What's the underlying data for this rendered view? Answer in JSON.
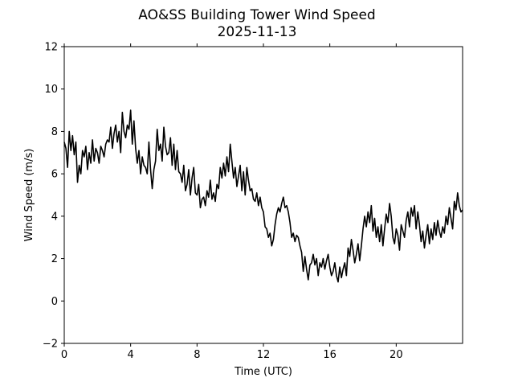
{
  "chart_data": {
    "type": "line",
    "title": "AO&SS Building Tower Wind Speed",
    "subtitle": "2025-11-13",
    "xlabel": "Time (UTC)",
    "ylabel": "Wind Speed (m/s)",
    "xlim": [
      0,
      24
    ],
    "ylim": [
      -2,
      12
    ],
    "xticks": [
      0,
      4,
      8,
      12,
      16,
      20
    ],
    "xtick_labels": [
      "0",
      "4",
      "8",
      "12",
      "16",
      "20"
    ],
    "yticks": [
      -2,
      0,
      2,
      4,
      6,
      8,
      10,
      12
    ],
    "ytick_labels": [
      "−2",
      "0",
      "2",
      "4",
      "6",
      "8",
      "10",
      "12"
    ],
    "grid": false,
    "series": [
      {
        "color": "#000000",
        "x": [
          0.0,
          0.1,
          0.2,
          0.3,
          0.4,
          0.5,
          0.6,
          0.7,
          0.8,
          0.9,
          1.0,
          1.1,
          1.2,
          1.3,
          1.4,
          1.5,
          1.6,
          1.7,
          1.8,
          1.9,
          2.0,
          2.1,
          2.2,
          2.3,
          2.4,
          2.5,
          2.6,
          2.7,
          2.8,
          2.9,
          3.0,
          3.1,
          3.2,
          3.3,
          3.4,
          3.5,
          3.6,
          3.7,
          3.8,
          3.9,
          4.0,
          4.1,
          4.2,
          4.3,
          4.4,
          4.5,
          4.6,
          4.7,
          4.8,
          4.9,
          5.0,
          5.1,
          5.2,
          5.3,
          5.4,
          5.5,
          5.6,
          5.7,
          5.8,
          5.9,
          6.0,
          6.1,
          6.2,
          6.3,
          6.4,
          6.5,
          6.6,
          6.7,
          6.8,
          6.9,
          7.0,
          7.1,
          7.2,
          7.3,
          7.4,
          7.5,
          7.6,
          7.7,
          7.8,
          7.9,
          8.0,
          8.1,
          8.2,
          8.3,
          8.4,
          8.5,
          8.6,
          8.7,
          8.8,
          8.9,
          9.0,
          9.1,
          9.2,
          9.3,
          9.4,
          9.5,
          9.6,
          9.7,
          9.8,
          9.9,
          10.0,
          10.1,
          10.2,
          10.3,
          10.4,
          10.5,
          10.6,
          10.7,
          10.8,
          10.9,
          11.0,
          11.1,
          11.2,
          11.3,
          11.4,
          11.5,
          11.6,
          11.7,
          11.8,
          11.9,
          12.0,
          12.1,
          12.2,
          12.3,
          12.4,
          12.5,
          12.6,
          12.7,
          12.8,
          12.9,
          13.0,
          13.1,
          13.2,
          13.3,
          13.4,
          13.5,
          13.6,
          13.7,
          13.8,
          13.9,
          14.0,
          14.1,
          14.2,
          14.3,
          14.4,
          14.5,
          14.6,
          14.7,
          14.8,
          14.9,
          15.0,
          15.1,
          15.2,
          15.3,
          15.4,
          15.5,
          15.6,
          15.7,
          15.8,
          15.9,
          16.0,
          16.1,
          16.2,
          16.3,
          16.4,
          16.5,
          16.6,
          16.7,
          16.8,
          16.9,
          17.0,
          17.1,
          17.2,
          17.3,
          17.4,
          17.5,
          17.6,
          17.7,
          17.8,
          17.9,
          18.0,
          18.1,
          18.2,
          18.3,
          18.4,
          18.5,
          18.6,
          18.7,
          18.8,
          18.9,
          19.0,
          19.1,
          19.2,
          19.3,
          19.4,
          19.5,
          19.6,
          19.7,
          19.8,
          19.9,
          20.0,
          20.1,
          20.2,
          20.3,
          20.4,
          20.5,
          20.6,
          20.7,
          20.8,
          20.9,
          21.0,
          21.1,
          21.2,
          21.3,
          21.4,
          21.5,
          21.6,
          21.7,
          21.8,
          21.9,
          22.0,
          22.1,
          22.2,
          22.3,
          22.4,
          22.5,
          22.6,
          22.7,
          22.8,
          22.9,
          23.0,
          23.1,
          23.2,
          23.3,
          23.4,
          23.5,
          23.6,
          23.7,
          23.8,
          23.9,
          24.0
        ],
        "values": [
          7.5,
          7.2,
          6.3,
          8.0,
          7.1,
          7.8,
          6.9,
          7.5,
          5.6,
          6.4,
          6.0,
          7.1,
          6.8,
          7.3,
          6.2,
          7.0,
          6.5,
          7.6,
          6.6,
          7.2,
          7.0,
          6.5,
          7.3,
          7.1,
          6.8,
          7.4,
          7.6,
          7.5,
          8.2,
          7.2,
          7.9,
          8.3,
          7.5,
          8.0,
          7.0,
          8.9,
          8.0,
          7.7,
          8.3,
          8.1,
          9.0,
          7.4,
          8.5,
          7.2,
          6.5,
          7.1,
          6.0,
          6.8,
          6.4,
          6.3,
          6.0,
          7.5,
          6.2,
          5.3,
          6.2,
          6.6,
          8.1,
          7.1,
          7.4,
          6.6,
          8.2,
          7.3,
          6.9,
          7.0,
          7.7,
          6.4,
          7.4,
          6.2,
          7.1,
          6.1,
          6.0,
          5.6,
          6.4,
          5.2,
          5.5,
          6.2,
          5.0,
          5.8,
          6.3,
          5.1,
          5.0,
          5.5,
          4.4,
          4.8,
          4.9,
          4.5,
          5.2,
          4.9,
          5.7,
          4.8,
          5.1,
          4.7,
          5.5,
          5.3,
          6.3,
          5.8,
          6.5,
          5.9,
          6.8,
          6.1,
          7.4,
          6.6,
          5.8,
          6.3,
          5.4,
          5.9,
          6.4,
          5.2,
          6.1,
          5.0,
          6.3,
          5.7,
          5.2,
          5.3,
          4.8,
          4.7,
          5.1,
          4.5,
          4.9,
          4.4,
          4.2,
          3.5,
          3.4,
          3.0,
          3.2,
          2.6,
          2.9,
          3.6,
          4.1,
          4.4,
          4.2,
          4.6,
          4.9,
          4.4,
          4.5,
          4.2,
          3.7,
          3.0,
          3.2,
          2.8,
          3.1,
          3.0,
          2.6,
          2.3,
          1.4,
          2.1,
          1.5,
          1.0,
          1.7,
          1.8,
          2.2,
          1.7,
          2.0,
          1.2,
          1.8,
          1.6,
          2.0,
          1.5,
          1.9,
          2.2,
          1.6,
          1.2,
          1.4,
          1.8,
          1.2,
          0.9,
          1.6,
          1.1,
          1.5,
          1.8,
          1.2,
          2.5,
          2.1,
          2.9,
          2.4,
          1.8,
          2.2,
          2.7,
          1.9,
          2.6,
          3.4,
          4.0,
          3.5,
          4.2,
          3.7,
          4.5,
          3.3,
          3.9,
          3.0,
          3.5,
          2.8,
          3.6,
          2.6,
          3.4,
          4.1,
          3.7,
          4.6,
          4.0,
          3.0,
          2.7,
          3.4,
          3.1,
          2.4,
          3.6,
          3.3,
          3.0,
          3.8,
          4.2,
          3.5,
          4.4,
          4.0,
          4.5,
          3.4,
          4.2,
          3.6,
          2.8,
          3.3,
          2.5,
          3.1,
          3.6,
          2.7,
          3.4,
          2.9,
          3.7,
          3.1,
          3.8,
          3.3,
          3.0,
          3.5,
          3.2,
          4.0,
          3.6,
          4.4,
          3.9,
          3.4,
          4.7,
          4.3,
          5.1,
          4.5,
          4.2,
          4.3
        ]
      }
    ]
  }
}
